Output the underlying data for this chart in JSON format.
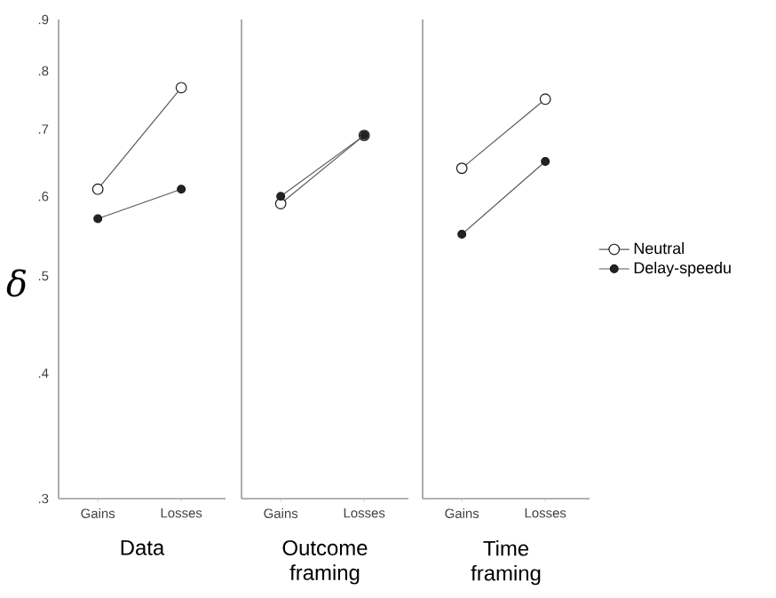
{
  "chart_data": [
    {
      "type": "line",
      "xlabel": "Data",
      "ylabel": "δ",
      "categories": [
        "Gains",
        "Losses"
      ],
      "log": true,
      "ylim": [
        0.3,
        0.9
      ],
      "yticks": [
        {
          "value": 0.3,
          "label": ".3"
        },
        {
          "value": 0.4,
          "label": ".4"
        },
        {
          "value": 0.5,
          "label": ".5"
        },
        {
          "value": 0.6,
          "label": ".6"
        },
        {
          "value": 0.7,
          "label": ".7"
        },
        {
          "value": 0.8,
          "label": ".8"
        },
        {
          "value": 0.9,
          "label": ".9"
        }
      ],
      "marker": "circle",
      "line_style": "solid",
      "legend": false,
      "series": [
        {
          "color": "#ffffff",
          "values": [
            0.61,
            0.77
          ]
        },
        {
          "color": "#222222",
          "values": [
            0.57,
            0.61
          ]
        }
      ]
    },
    {
      "type": "line",
      "xlabel": "Outcome framing",
      "categories": [
        "Gains",
        "Losses"
      ],
      "log": true,
      "ylim": [
        0.3,
        0.9
      ],
      "tick_labels": "x",
      "marker": "circle",
      "line_style": "solid",
      "legend": false,
      "series": [
        {
          "color": "#ffffff",
          "values": [
            0.59,
            0.69
          ]
        },
        {
          "color": "#222222",
          "values": [
            0.6,
            0.69
          ]
        }
      ]
    },
    {
      "type": "line",
      "xlabel": "Time framing",
      "categories": [
        "Gains",
        "Losses"
      ],
      "log": true,
      "ylim": [
        0.3,
        0.9
      ],
      "tick_labels": "x",
      "marker": "circle",
      "line_style": "solid",
      "legend": "right",
      "series": [
        {
          "name": "Neutral",
          "color": "#ffffff",
          "values": [
            0.64,
            0.75
          ]
        },
        {
          "name": "Delay-speedu",
          "color": "#222222",
          "values": [
            0.55,
            0.65
          ]
        }
      ]
    }
  ]
}
